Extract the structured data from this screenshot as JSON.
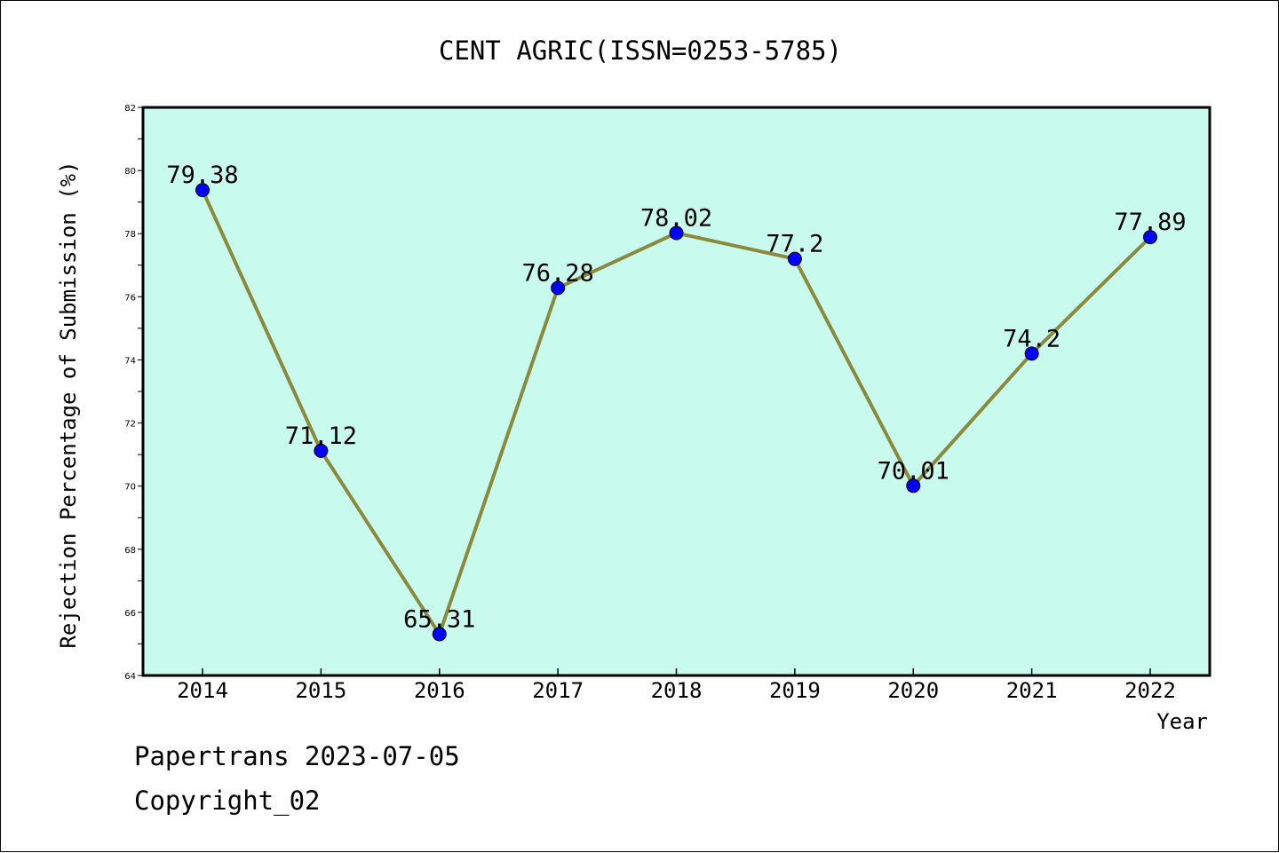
{
  "footer": {
    "source": "Papertrans 2023-07-05",
    "copyright": "Copyright_02"
  },
  "colors": {
    "plot_background": "#c8fbee",
    "line": "#8b8a3c",
    "marker": "#0000ff",
    "axis": "#000000"
  },
  "chart_data": {
    "type": "line",
    "title": "CENT AGRIC(ISSN=0253-5785)",
    "xlabel": "Year",
    "ylabel": "Rejection Percentage of Submission (%)",
    "categories": [
      "2014",
      "2015",
      "2016",
      "2017",
      "2018",
      "2019",
      "2020",
      "2021",
      "2022"
    ],
    "series": [
      {
        "values": [
          79.38,
          71.12,
          65.31,
          76.28,
          78.02,
          77.2,
          70.01,
          74.2,
          77.89
        ],
        "labels": [
          "79.38",
          "71.12",
          "65.31",
          "76.28",
          "78.02",
          "77.2",
          "70.01",
          "74.2",
          "77.89"
        ]
      }
    ],
    "ylim": [
      64,
      82
    ],
    "yticks": [
      "64",
      "66",
      "68",
      "70",
      "72",
      "74",
      "76",
      "78",
      "80",
      "82"
    ],
    "grid": false,
    "legend": "none"
  }
}
